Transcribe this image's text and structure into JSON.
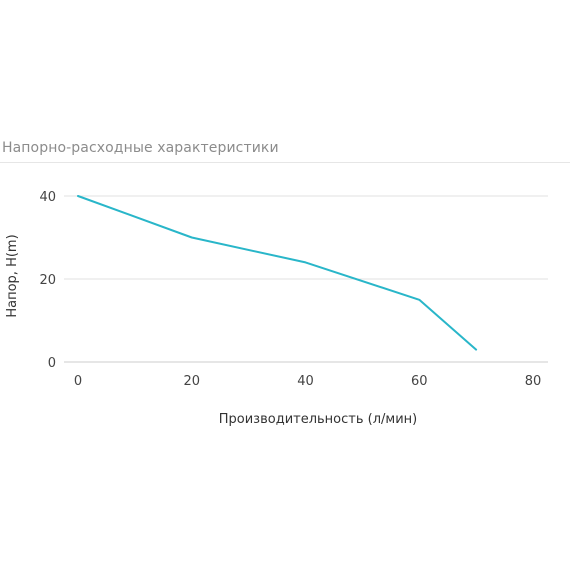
{
  "chart_data": {
    "type": "line",
    "title": "Напорно-расходные характеристики",
    "xlabel": "Производительность (л/мин)",
    "ylabel": "Напор, H(m)",
    "xlim": [
      0,
      80
    ],
    "ylim": [
      0,
      40
    ],
    "x_ticks": [
      0,
      20,
      40,
      60,
      80
    ],
    "y_ticks": [
      0,
      20,
      40
    ],
    "grid": true,
    "legend": "none",
    "series": [
      {
        "color": "#29b6c9",
        "x": [
          0,
          20,
          40,
          60,
          70
        ],
        "y": [
          40,
          30,
          24,
          15,
          3
        ]
      }
    ],
    "colors": {
      "line": "#29b6c9",
      "grid": "#e0e0e0",
      "axis": "#cccccc"
    }
  }
}
